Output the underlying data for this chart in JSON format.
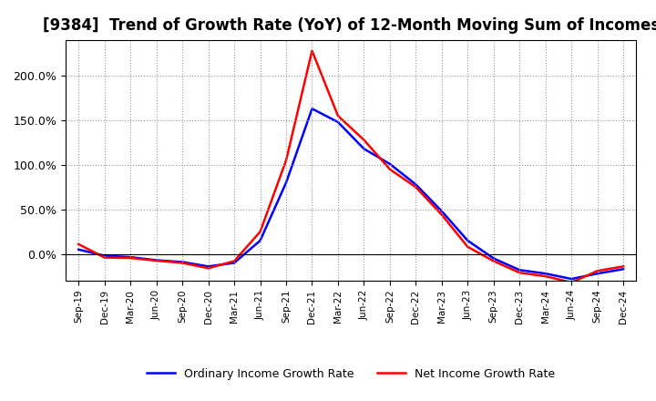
{
  "title": "[9384]  Trend of Growth Rate (YoY) of 12-Month Moving Sum of Incomes",
  "labels": [
    "Sep-19",
    "Dec-19",
    "Mar-20",
    "Jun-20",
    "Sep-20",
    "Dec-20",
    "Mar-21",
    "Jun-21",
    "Sep-21",
    "Dec-21",
    "Mar-22",
    "Jun-22",
    "Sep-22",
    "Dec-22",
    "Mar-23",
    "Jun-23",
    "Sep-23",
    "Dec-23",
    "Mar-24",
    "Jun-24",
    "Sep-24",
    "Dec-24"
  ],
  "ordinary_income": [
    5.0,
    -2.0,
    -3.5,
    -7.0,
    -9.0,
    -14.0,
    -10.0,
    15.0,
    80.0,
    163.0,
    148.0,
    118.0,
    101.0,
    78.0,
    48.0,
    15.0,
    -5.0,
    -18.0,
    -22.0,
    -28.0,
    -22.0,
    -17.0
  ],
  "net_income": [
    11.0,
    -4.0,
    -4.5,
    -7.5,
    -10.0,
    -16.0,
    -8.0,
    25.0,
    105.0,
    228.0,
    155.0,
    128.0,
    95.0,
    75.0,
    44.0,
    8.0,
    -8.0,
    -21.0,
    -25.0,
    -32.0,
    -19.0,
    -14.0
  ],
  "ordinary_color": "#0000ff",
  "net_color": "#ff0000",
  "line_width": 1.8,
  "ylim_min": -30,
  "ylim_max": 240,
  "yticks": [
    0,
    50,
    100,
    150,
    200
  ],
  "ytick_labels": [
    "0.0%",
    "50.0%",
    "100.0%",
    "150.0%",
    "200.0%"
  ],
  "background_color": "#ffffff",
  "plot_bg_color": "#ffffff",
  "grid_color": "#999999",
  "legend_ordinary": "Ordinary Income Growth Rate",
  "legend_net": "Net Income Growth Rate",
  "title_fontsize": 12
}
